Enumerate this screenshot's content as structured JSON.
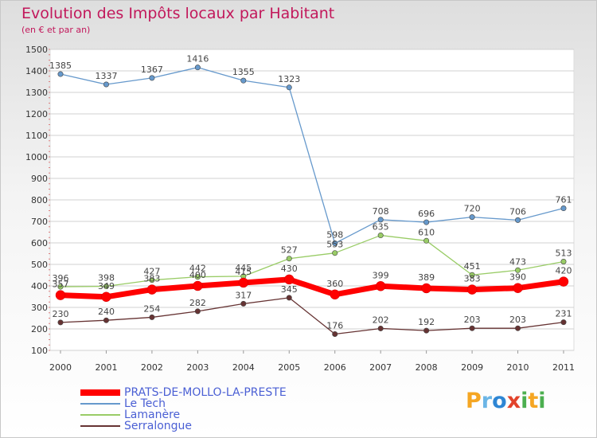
{
  "title": "Evolution des Impôts locaux par Habitant",
  "subtitle": "(en € et par an)",
  "brand": {
    "p": "P",
    "r": "r",
    "o": "o",
    "x": "x",
    "i1": "i",
    "t": "t",
    "i2": "i"
  },
  "chart_data": {
    "type": "line",
    "title": "Evolution des Impôts locaux par Habitant",
    "subtitle": "(en € et par an)",
    "xlabel": "",
    "ylabel": "",
    "x": [
      2000,
      2001,
      2002,
      2003,
      2004,
      2005,
      2006,
      2007,
      2008,
      2009,
      2010,
      2011
    ],
    "ylim": [
      100,
      1500
    ],
    "yticks": [
      100,
      200,
      300,
      400,
      500,
      600,
      700,
      800,
      900,
      1000,
      1100,
      1200,
      1300,
      1400,
      1500
    ],
    "grid": "horizontal",
    "legend_position": "bottom-left",
    "series": [
      {
        "name": "PRATS-DE-MOLLO-LA-PRESTE",
        "color": "#ff0000",
        "values": [
          357,
          349,
          383,
          400,
          415,
          430,
          360,
          399,
          389,
          383,
          390,
          420
        ]
      },
      {
        "name": "Le Tech",
        "color": "#6699cc",
        "values": [
          1385,
          1337,
          1367,
          1416,
          1355,
          1323,
          598,
          708,
          696,
          720,
          706,
          761
        ]
      },
      {
        "name": "Lamanère",
        "color": "#99cc66",
        "values": [
          396,
          398,
          427,
          442,
          445,
          527,
          553,
          635,
          610,
          451,
          473,
          513
        ]
      },
      {
        "name": "Serralongue",
        "color": "#663333",
        "values": [
          230,
          240,
          254,
          282,
          317,
          345,
          176,
          202,
          192,
          203,
          203,
          231
        ]
      }
    ]
  }
}
